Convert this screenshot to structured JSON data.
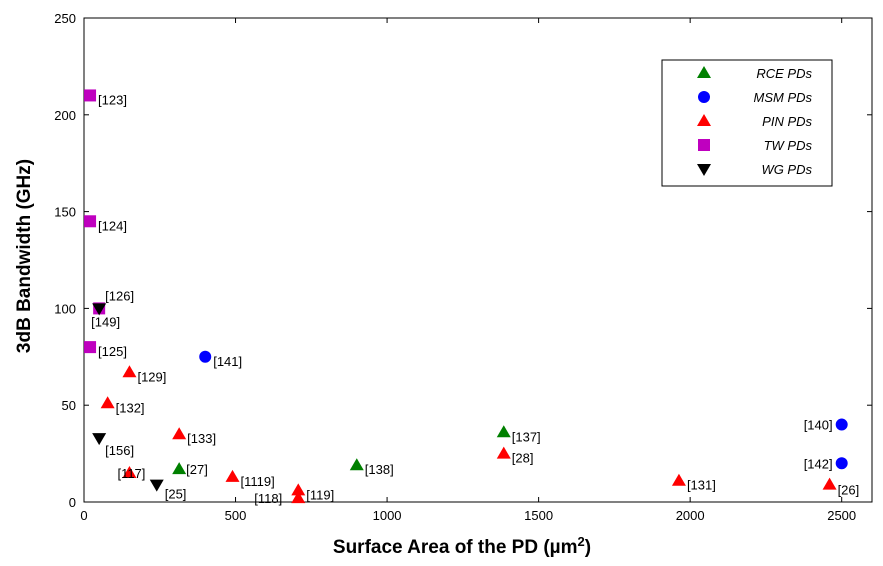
{
  "chart_data": {
    "type": "scatter",
    "title": "",
    "xlabel": "Surface Area of the PD (µm²)",
    "xlabel_main": "Surface Area of the PD (µm",
    "xlabel_sup": "2",
    "xlabel_end": ")",
    "ylabel": "3dB Bandwidth (GHz)",
    "xlim": [
      0,
      2600
    ],
    "ylim": [
      0,
      250
    ],
    "x_ticks": [
      0,
      500,
      1000,
      1500,
      2000,
      2500
    ],
    "y_ticks": [
      0,
      50,
      100,
      150,
      200,
      250
    ],
    "grid": false,
    "legend_position": "top-right",
    "series": [
      {
        "name": "RCE PDs",
        "marker": "triangle-up",
        "color": "#008000",
        "points": [
          {
            "x": 314,
            "y": 17,
            "label": "[27]"
          },
          {
            "x": 900,
            "y": 19,
            "label": "[138]"
          },
          {
            "x": 1385,
            "y": 36,
            "label": "[137]"
          }
        ]
      },
      {
        "name": "MSM PDs",
        "marker": "circle",
        "color": "#0000ff",
        "points": [
          {
            "x": 400,
            "y": 75,
            "label": "[141]"
          },
          {
            "x": 2500,
            "y": 40,
            "label": "[140]"
          },
          {
            "x": 2500,
            "y": 20,
            "label": "[142]"
          }
        ]
      },
      {
        "name": "PIN PDs",
        "marker": "triangle-up",
        "color": "#ff0000",
        "points": [
          {
            "x": 150,
            "y": 67,
            "label": "[129]"
          },
          {
            "x": 78,
            "y": 51,
            "label": "[132]"
          },
          {
            "x": 314,
            "y": 35,
            "label": "[133]"
          },
          {
            "x": 150,
            "y": 15,
            "label": "[117]"
          },
          {
            "x": 490,
            "y": 13,
            "label": "[1119]"
          },
          {
            "x": 707,
            "y": 6,
            "label": "[119]"
          },
          {
            "x": 707,
            "y": 2,
            "label": "[118]"
          },
          {
            "x": 1385,
            "y": 25,
            "label": "[28]"
          },
          {
            "x": 1963,
            "y": 11,
            "label": "[131]"
          },
          {
            "x": 2460,
            "y": 9,
            "label": "[26]"
          }
        ]
      },
      {
        "name": "TW PDs",
        "marker": "square",
        "color": "#bf00bf",
        "points": [
          {
            "x": 20,
            "y": 210,
            "label": "[123]"
          },
          {
            "x": 20,
            "y": 145,
            "label": "[124]"
          },
          {
            "x": 50,
            "y": 100,
            "label": "[149]"
          },
          {
            "x": 20,
            "y": 80,
            "label": "[125]"
          }
        ]
      },
      {
        "name": "WG PDs",
        "marker": "triangle-down",
        "color": "#000000",
        "points": [
          {
            "x": 50,
            "y": 100,
            "label": "[126]"
          },
          {
            "x": 50,
            "y": 33,
            "label": "[156]"
          },
          {
            "x": 240,
            "y": 9,
            "label": "[25]"
          }
        ]
      }
    ]
  }
}
